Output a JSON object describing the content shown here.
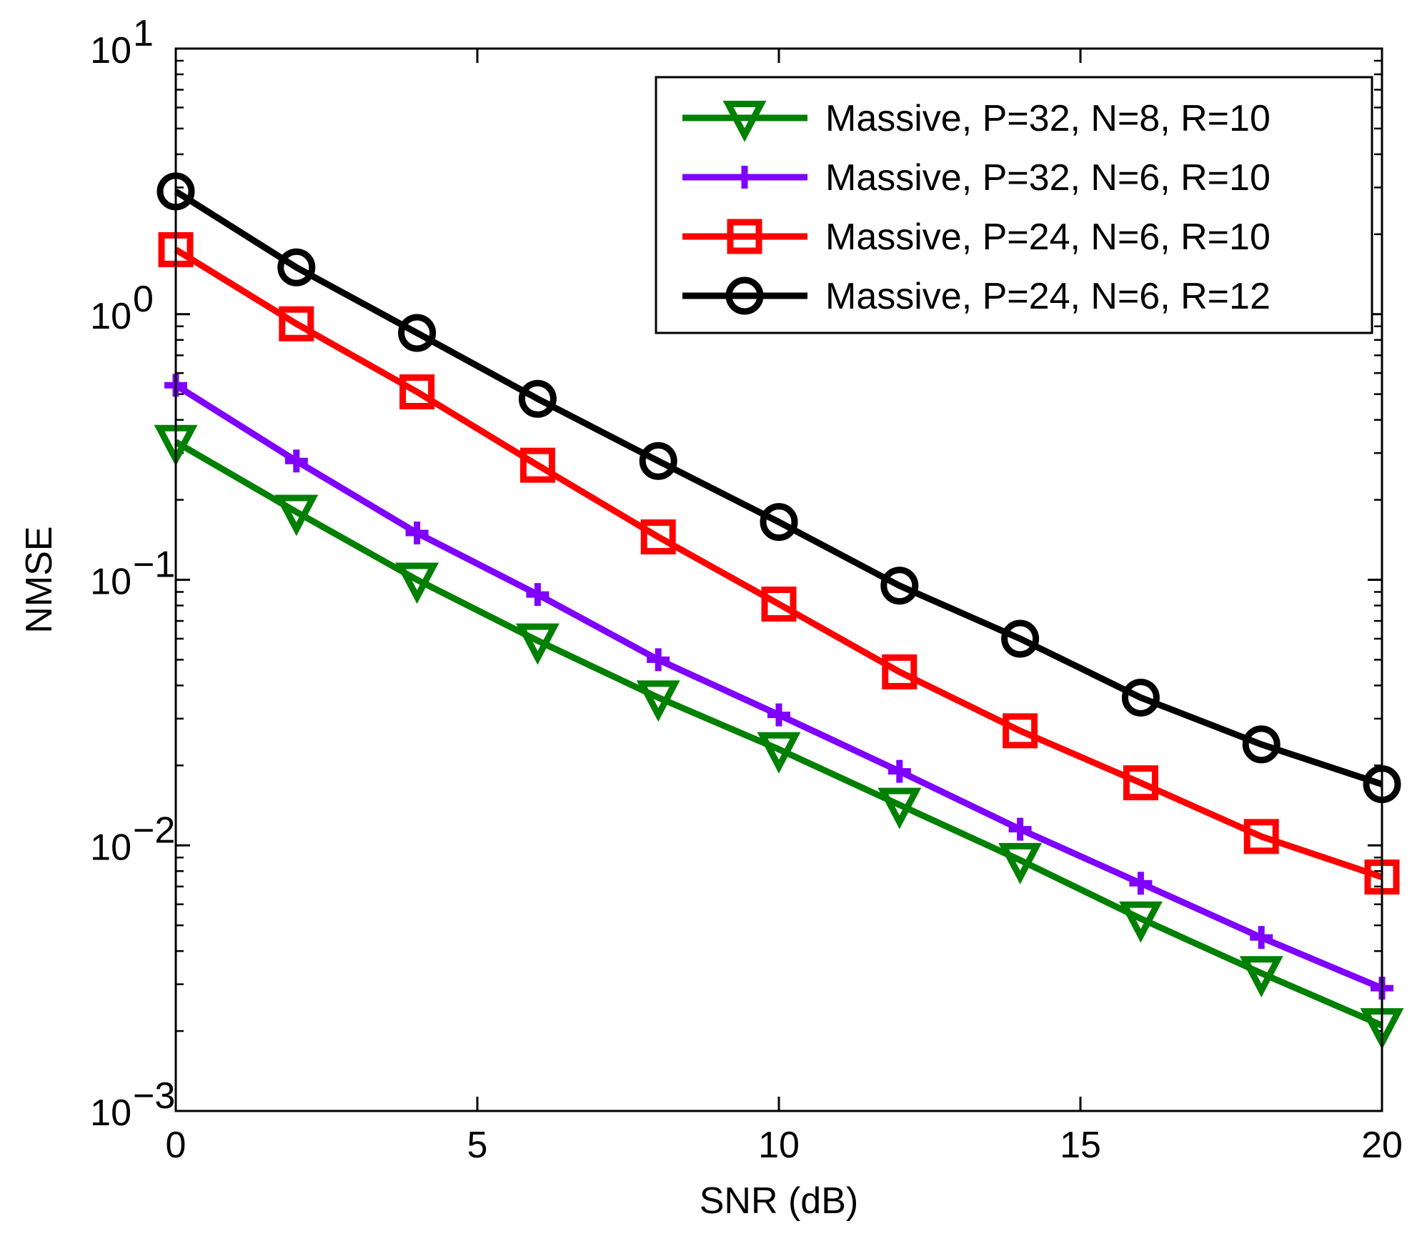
{
  "chart_data": {
    "type": "line",
    "title": "",
    "xlabel": "SNR (dB)",
    "ylabel": "NMSE",
    "xlim": [
      0,
      20
    ],
    "ylim": [
      0.001,
      10
    ],
    "yscale": "log",
    "grid": false,
    "legend_position": "top-right",
    "x": [
      0,
      2,
      4,
      6,
      8,
      10,
      12,
      14,
      16,
      18,
      20
    ],
    "x_ticks": [
      {
        "value": 0,
        "label": "0"
      },
      {
        "value": 5,
        "label": "5"
      },
      {
        "value": 10,
        "label": "10"
      },
      {
        "value": 15,
        "label": "15"
      },
      {
        "value": 20,
        "label": "20"
      }
    ],
    "y_ticks": [
      {
        "value": 10,
        "base": "10",
        "exp": "1"
      },
      {
        "value": 1,
        "base": "10",
        "exp": "0"
      },
      {
        "value": 0.1,
        "base": "10",
        "exp": "−1"
      },
      {
        "value": 0.01,
        "base": "10",
        "exp": "−2"
      },
      {
        "value": 0.001,
        "base": "10",
        "exp": "−3"
      }
    ],
    "series": [
      {
        "name": "Massive, P=32, N=8, R=10",
        "color": "#008000",
        "marker": "triangle-down",
        "values": [
          0.33,
          0.18,
          0.1,
          0.059,
          0.036,
          0.023,
          0.0142,
          0.0088,
          0.0053,
          0.0033,
          0.0021
        ]
      },
      {
        "name": "Massive, P=32, N=6, R=10",
        "color": "#7f00ff",
        "marker": "plus",
        "values": [
          0.54,
          0.28,
          0.15,
          0.088,
          0.05,
          0.031,
          0.019,
          0.0115,
          0.0072,
          0.0045,
          0.0029
        ]
      },
      {
        "name": "Massive, P=24, N=6, R=10",
        "color": "#ff0000",
        "marker": "square",
        "values": [
          1.75,
          0.92,
          0.51,
          0.27,
          0.145,
          0.081,
          0.045,
          0.027,
          0.0172,
          0.0108,
          0.0076
        ]
      },
      {
        "name": "Massive, P=24, N=6, R=12",
        "color": "#000000",
        "marker": "circle",
        "values": [
          2.9,
          1.5,
          0.85,
          0.48,
          0.28,
          0.165,
          0.095,
          0.06,
          0.036,
          0.024,
          0.017
        ]
      }
    ]
  }
}
